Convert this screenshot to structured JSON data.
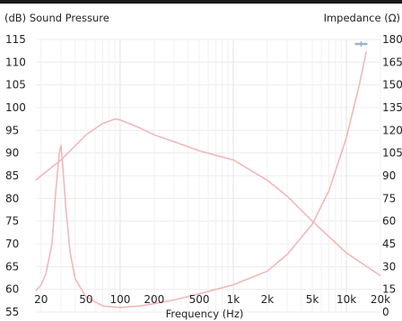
{
  "chart_data": {
    "type": "line",
    "xlabel": "Frequency (Hz)",
    "ylabel_left": "(dB) Sound Pressure",
    "ylabel_right": "Impedance (Ω)",
    "x_scale": "log",
    "xlim": [
      18,
      20000
    ],
    "ylim_left": [
      55,
      115
    ],
    "ylim_right": [
      0,
      180
    ],
    "x_ticks": [
      20,
      50,
      100,
      200,
      500,
      1000,
      2000,
      5000,
      10000,
      20000
    ],
    "x_tick_labels": [
      "20",
      "50",
      "100",
      "200",
      "500",
      "1k",
      "2k",
      "5k",
      "10k",
      "20k"
    ],
    "y_left_ticks": [
      55,
      60,
      65,
      70,
      75,
      80,
      85,
      90,
      95,
      100,
      105,
      110,
      115
    ],
    "y_left_tick_labels": [
      "55",
      "60",
      "65",
      "70",
      "75",
      "80",
      "85",
      "90",
      "95",
      "100",
      "105",
      "110",
      "115"
    ],
    "y_right_ticks": [
      0,
      15,
      30,
      45,
      60,
      75,
      90,
      105,
      120,
      135,
      150,
      165,
      180
    ],
    "y_right_tick_labels": [
      "0",
      "15",
      "30",
      "45",
      "60",
      "75",
      "90",
      "105",
      "120",
      "135",
      "150",
      "165",
      "180"
    ],
    "grid": true,
    "series": [
      {
        "axis": "left",
        "color": "#f2b8b8",
        "x": [
          18,
          20,
          30,
          50,
          70,
          90,
          100,
          150,
          200,
          300,
          500,
          700,
          1000,
          2000,
          3000,
          5000,
          10000,
          20000
        ],
        "y": [
          84,
          85,
          88.5,
          94,
          96.5,
          97.5,
          97.3,
          95.5,
          94,
          92.5,
          90.5,
          89.5,
          88.5,
          84,
          80.5,
          75,
          68,
          63
        ]
      },
      {
        "axis": "right",
        "color": "#f2b8b8",
        "x": [
          18,
          20,
          22,
          25,
          27,
          29,
          30,
          31,
          33,
          36,
          40,
          50,
          70,
          100,
          150,
          200,
          300,
          500,
          1000,
          2000,
          3000,
          5000,
          7000,
          10000,
          13000,
          15000
        ],
        "y": [
          14,
          18,
          25,
          45,
          80,
          105,
          110,
          98,
          70,
          40,
          22,
          10,
          4,
          3,
          4,
          5.5,
          8,
          12,
          18,
          27,
          38,
          58,
          80,
          115,
          150,
          172
        ]
      }
    ],
    "markers": [
      {
        "axis": "left",
        "x": 13500,
        "y": 114,
        "color": "#9bb3c8"
      }
    ]
  }
}
